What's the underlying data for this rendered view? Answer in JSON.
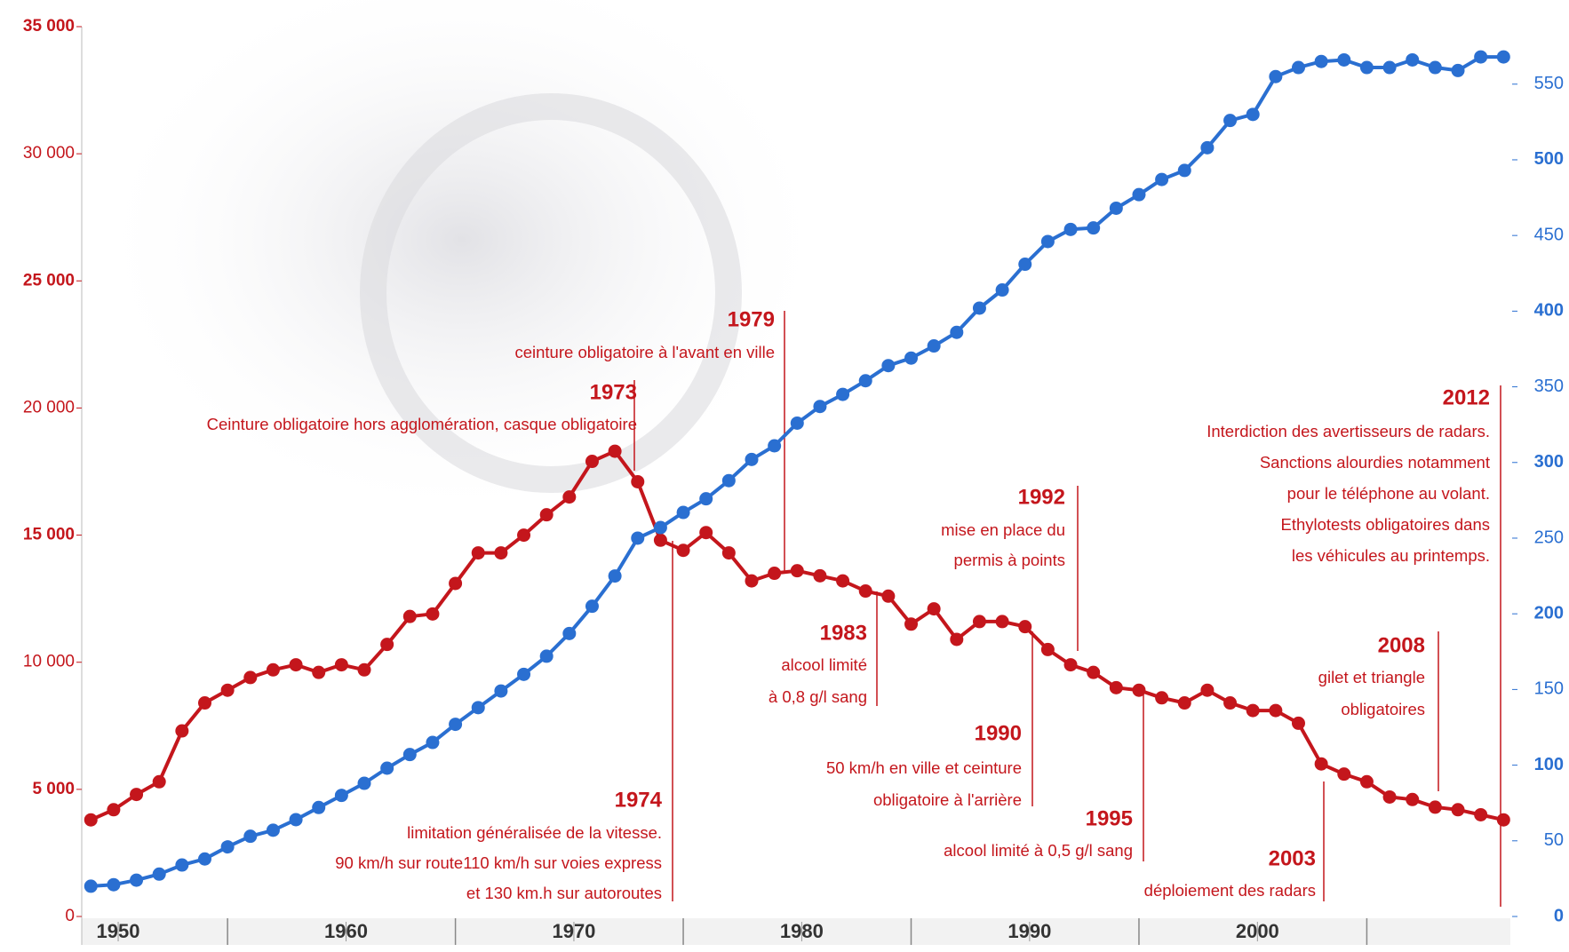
{
  "chart_data": {
    "type": "line",
    "x": [
      1950,
      1951,
      1952,
      1953,
      1954,
      1955,
      1956,
      1957,
      1958,
      1959,
      1960,
      1961,
      1962,
      1963,
      1964,
      1965,
      1966,
      1967,
      1968,
      1969,
      1970,
      1971,
      1972,
      1973,
      1974,
      1975,
      1976,
      1977,
      1978,
      1979,
      1980,
      1981,
      1982,
      1983,
      1984,
      1985,
      1986,
      1987,
      1988,
      1989,
      1990,
      1991,
      1992,
      1993,
      1994,
      1995,
      1996,
      1997,
      1998,
      1999,
      2000,
      2001,
      2002,
      2003,
      2004,
      2005,
      2006,
      2007,
      2008,
      2009,
      2010,
      2011,
      2012
    ],
    "series": [
      {
        "color": "#c4161c",
        "values": [
          3800,
          4200,
          4800,
          5300,
          7300,
          8400,
          8900,
          9400,
          9700,
          9900,
          9600,
          9900,
          9700,
          10700,
          11800,
          11900,
          13100,
          14300,
          14300,
          15000,
          15800,
          16500,
          17900,
          18300,
          17100,
          14800,
          14400,
          15100,
          14300,
          13200,
          13500,
          13600,
          13400,
          13200,
          12800,
          12600,
          11500,
          12100,
          10900,
          11600,
          11600,
          11400,
          10500,
          9900,
          9600,
          9000,
          8900,
          8600,
          8400,
          8900,
          8400,
          8100,
          8100,
          7600,
          6000,
          5600,
          5300,
          4700,
          4600,
          4300,
          4200,
          4000,
          3800
        ]
      },
      {
        "color": "#2a6fd1",
        "axis": "y2",
        "values": [
          20,
          21,
          24,
          28,
          34,
          38,
          46,
          53,
          57,
          64,
          72,
          80,
          88,
          98,
          107,
          115,
          127,
          138,
          149,
          160,
          172,
          187,
          205,
          225,
          250,
          257,
          267,
          276,
          288,
          302,
          311,
          326,
          337,
          345,
          354,
          364,
          369,
          377,
          386,
          402,
          414,
          431,
          446,
          454,
          455,
          468,
          477,
          487,
          493,
          508,
          526,
          530,
          555,
          561,
          565,
          566,
          561,
          561,
          566,
          561,
          559,
          568,
          568
        ]
      }
    ],
    "xlim": [
      1949.6,
      2012.3
    ],
    "xticks": [
      1950,
      1960,
      1970,
      1980,
      1990,
      2000
    ],
    "ylim": [
      0,
      35000
    ],
    "yticks": [
      0,
      {
        "value": 5000,
        "label": "5 000"
      },
      {
        "value": 10000,
        "label": "10 000"
      },
      {
        "value": 15000,
        "label": "15 000"
      },
      {
        "value": 20000,
        "label": "20 000"
      },
      {
        "value": 25000,
        "label": "25 000"
      },
      {
        "value": 30000,
        "label": "30 000"
      },
      {
        "value": 35000,
        "label": "35 000"
      }
    ],
    "y2lim": [
      0,
      588
    ],
    "y2ticks": [
      0,
      50,
      100,
      150,
      200,
      250,
      300,
      350,
      400,
      450,
      500,
      550
    ],
    "annotations": [
      {
        "year": 1973,
        "text": [
          "Ceinture obligatoire hors agglomération, casque obligatoire"
        ]
      },
      {
        "year": 1979,
        "text": [
          "ceinture obligatoire à l'avant en ville"
        ]
      },
      {
        "year": 1974,
        "text": [
          "limitation généralisée de la vitesse.",
          "90 km/h sur route110 km/h sur voies express",
          "et 130 km.h sur autoroutes"
        ]
      },
      {
        "year": 1983,
        "text": [
          "alcool limité",
          "à 0,8 g/l sang"
        ]
      },
      {
        "year": 1990,
        "text": [
          "50 km/h en ville et ceinture",
          "obligatoire à l'arrière"
        ]
      },
      {
        "year": 1992,
        "text": [
          "mise en place du",
          "permis à points"
        ]
      },
      {
        "year": 1995,
        "text": [
          "alcool limité à 0,5 g/l sang"
        ]
      },
      {
        "year": 2003,
        "text": [
          "déploiement des radars"
        ]
      },
      {
        "year": 2008,
        "text": [
          "gilet et triangle",
          "obligatoires"
        ]
      },
      {
        "year": 2012,
        "text": [
          "Interdiction des avertisseurs de radars.",
          "Sanctions alourdies notamment",
          "pour le téléphone au volant.",
          "Ethylotests obligatoires dans",
          "les véhicules au printemps."
        ]
      }
    ]
  }
}
